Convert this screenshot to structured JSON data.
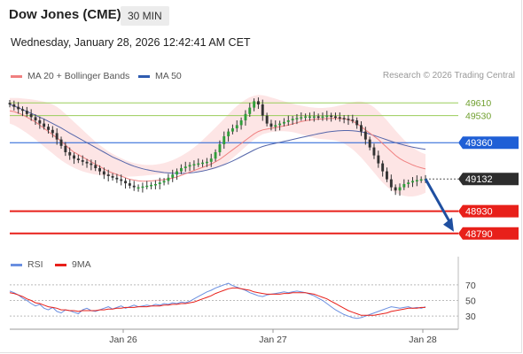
{
  "header": {
    "title": "Dow Jones (CME)",
    "interval": "30 MIN",
    "datetime": "Wednesday, January 28, 2026 12:42:41 AM CET",
    "credit": "Research © 2026 Trading Central"
  },
  "legend": {
    "ma20_label": "MA 20 + Bollinger Bands",
    "ma50_label": "MA 50",
    "rsi_label": "RSI",
    "ma9_label": "9MA"
  },
  "colors": {
    "ma20": "#f08080",
    "band_fill": "#fde2e2",
    "ma50": "#5566aa",
    "resistance": "#9acd5a",
    "pivot": "#1f5fd6",
    "support": "#e8201a",
    "last": "#333333",
    "rsi": "#6a8fe0",
    "rsi_ma": "#e8201a",
    "candle_up": "#2f9d3a",
    "candle_down": "#333333",
    "arrow": "#1f4fa0"
  },
  "chart_data": {
    "type": "candlestick",
    "ylim": [
      48700,
      49700
    ],
    "x_ticks": [
      "Jan 26",
      "Jan 27",
      "Jan 28"
    ],
    "levels": [
      {
        "value": 49610,
        "label": "49610",
        "kind": "resistance"
      },
      {
        "value": 49530,
        "label": "49530",
        "kind": "resistance"
      },
      {
        "value": 49360,
        "label": "49360",
        "kind": "pivot"
      },
      {
        "value": 49132,
        "label": "49132",
        "kind": "last"
      },
      {
        "value": 48930,
        "label": "48930",
        "kind": "support"
      },
      {
        "value": 48790,
        "label": "48790",
        "kind": "support"
      }
    ],
    "close": [
      49600,
      49585,
      49570,
      49560,
      49540,
      49520,
      49500,
      49480,
      49460,
      49440,
      49420,
      49380,
      49340,
      49300,
      49280,
      49260,
      49250,
      49240,
      49230,
      49220,
      49200,
      49180,
      49160,
      49150,
      49140,
      49130,
      49120,
      49105,
      49090,
      49080,
      49080,
      49085,
      49090,
      49095,
      49100,
      49110,
      49120,
      49140,
      49160,
      49180,
      49200,
      49210,
      49220,
      49225,
      49230,
      49235,
      49240,
      49260,
      49300,
      49350,
      49400,
      49430,
      49450,
      49470,
      49500,
      49540,
      49580,
      49620,
      49600,
      49530,
      49480,
      49460,
      49470,
      49480,
      49490,
      49500,
      49510,
      49515,
      49520,
      49525,
      49525,
      49525,
      49520,
      49525,
      49530,
      49525,
      49520,
      49515,
      49510,
      49505,
      49500,
      49470,
      49430,
      49380,
      49330,
      49280,
      49230,
      49180,
      49130,
      49080,
      49060,
      49080,
      49100,
      49110,
      49120,
      49125,
      49130,
      49132
    ],
    "ma20": [
      49560,
      49555,
      49545,
      49535,
      49520,
      49505,
      49490,
      49470,
      49450,
      49430,
      49410,
      49390,
      49370,
      49345,
      49320,
      49300,
      49285,
      49270,
      49255,
      49240,
      49225,
      49210,
      49195,
      49180,
      49170,
      49160,
      49150,
      49140,
      49130,
      49125,
      49120,
      49118,
      49118,
      49120,
      49122,
      49125,
      49128,
      49132,
      49137,
      49145,
      49155,
      49165,
      49175,
      49185,
      49195,
      49205,
      49215,
      49225,
      49240,
      49255,
      49275,
      49295,
      49315,
      49335,
      49355,
      49375,
      49395,
      49415,
      49430,
      49440,
      49445,
      49450,
      49455,
      49460,
      49465,
      49470,
      49478,
      49485,
      49492,
      49498,
      49502,
      49506,
      49508,
      49510,
      49511,
      49512,
      49512,
      49511,
      49510,
      49505,
      49495,
      49480,
      49460,
      49440,
      49420,
      49400,
      49380,
      49355,
      49330,
      49305,
      49280,
      49260,
      49245,
      49232,
      49220,
      49210,
      49202,
      49195
    ],
    "ma50": [
      49600,
      49590,
      49580,
      49568,
      49556,
      49544,
      49532,
      49520,
      49508,
      49494,
      49480,
      49466,
      49452,
      49436,
      49420,
      49405,
      49390,
      49375,
      49360,
      49345,
      49330,
      49315,
      49300,
      49285,
      49270,
      49258,
      49246,
      49234,
      49222,
      49212,
      49204,
      49196,
      49190,
      49185,
      49180,
      49176,
      49172,
      49170,
      49168,
      49167,
      49167,
      49168,
      49170,
      49173,
      49177,
      49182,
      49188,
      49195,
      49203,
      49212,
      49222,
      49233,
      49245,
      49258,
      49272,
      49286,
      49300,
      49314,
      49326,
      49336,
      49344,
      49350,
      49356,
      49362,
      49368,
      49374,
      49380,
      49386,
      49392,
      49398,
      49404,
      49410,
      49416,
      49421,
      49426,
      49430,
      49433,
      49435,
      49436,
      49436,
      49435,
      49432,
      49428,
      49422,
      49414,
      49405,
      49396,
      49387,
      49378,
      49369,
      49360,
      49352,
      49345,
      49338,
      49332,
      49327,
      49322,
      49318
    ],
    "band_upper": [
      49640,
      49640,
      49640,
      49638,
      49635,
      49632,
      49628,
      49623,
      49617,
      49610,
      49600,
      49585,
      49565,
      49540,
      49515,
      49490,
      49465,
      49440,
      49415,
      49390,
      49365,
      49345,
      49325,
      49305,
      49290,
      49275,
      49262,
      49250,
      49240,
      49232,
      49226,
      49222,
      49220,
      49220,
      49222,
      49226,
      49232,
      49240,
      49250,
      49262,
      49276,
      49292,
      49310,
      49330,
      49352,
      49376,
      49402,
      49428,
      49455,
      49482,
      49510,
      49538,
      49565,
      49590,
      49612,
      49630,
      49645,
      49655,
      49660,
      49658,
      49652,
      49644,
      49636,
      49628,
      49620,
      49612,
      49604,
      49598,
      49592,
      49587,
      49583,
      49580,
      49578,
      49578,
      49580,
      49583,
      49588,
      49594,
      49600,
      49608,
      49614,
      49618,
      49618,
      49612,
      49600,
      49582,
      49558,
      49530,
      49500,
      49468,
      49436,
      49406,
      49378,
      49352,
      49330,
      49312,
      49298,
      49288
    ],
    "band_lower": [
      49480,
      49470,
      49455,
      49438,
      49420,
      49400,
      49380,
      49358,
      49336,
      49314,
      49292,
      49270,
      49250,
      49232,
      49216,
      49202,
      49190,
      49180,
      49172,
      49165,
      49160,
      49156,
      49153,
      49150,
      49148,
      49147,
      49146,
      49146,
      49147,
      49148,
      49150,
      49152,
      49155,
      49158,
      49160,
      49162,
      49164,
      49166,
      49168,
      49170,
      49172,
      49174,
      49176,
      49178,
      49180,
      49182,
      49185,
      49190,
      49198,
      49208,
      49222,
      49240,
      49262,
      49286,
      49310,
      49334,
      49358,
      49380,
      49398,
      49412,
      49420,
      49426,
      49430,
      49432,
      49432,
      49430,
      49426,
      49420,
      49413,
      49405,
      49397,
      49390,
      49385,
      49382,
      49380,
      49378,
      49374,
      49366,
      49354,
      49338,
      49318,
      49294,
      49266,
      49236,
      49204,
      49172,
      49140,
      49110,
      49084,
      49062,
      49046,
      49034,
      49026,
      49022,
      49022,
      49026,
      49034,
      49046
    ],
    "projection_target": 48790,
    "rsi": {
      "ylim": [
        20,
        80
      ],
      "ticks": [
        70,
        50,
        30
      ],
      "rsi": [
        62,
        60,
        57,
        53,
        50,
        46,
        43,
        45,
        40,
        38,
        41,
        36,
        34,
        38,
        37,
        35,
        33,
        38,
        40,
        37,
        36,
        38,
        40,
        42,
        39,
        41,
        43,
        40,
        42,
        44,
        42,
        43,
        44,
        43,
        45,
        44,
        46,
        45,
        47,
        46,
        48,
        47,
        49,
        52,
        55,
        58,
        61,
        63,
        66,
        68,
        70,
        72,
        69,
        67,
        65,
        63,
        60,
        58,
        56,
        55,
        57,
        58,
        59,
        60,
        61,
        60,
        61,
        62,
        61,
        60,
        58,
        56,
        53,
        50,
        46,
        42,
        38,
        35,
        32,
        30,
        28,
        27,
        28,
        30,
        32,
        34,
        36,
        38,
        40,
        42,
        41,
        40,
        41,
        42,
        40,
        41,
        40,
        42
      ],
      "ma9": [
        60,
        59,
        57,
        55,
        52,
        50,
        47,
        46,
        44,
        42,
        41,
        40,
        38,
        38,
        37,
        37,
        36,
        37,
        37,
        37,
        37,
        38,
        38,
        39,
        39,
        40,
        40,
        41,
        41,
        41,
        42,
        42,
        42,
        43,
        43,
        43,
        44,
        44,
        45,
        45,
        46,
        46,
        47,
        48,
        50,
        52,
        54,
        56,
        59,
        61,
        63,
        65,
        66,
        66,
        65,
        64,
        63,
        61,
        60,
        59,
        58,
        58,
        58,
        58,
        59,
        59,
        60,
        60,
        60,
        60,
        59,
        58,
        56,
        54,
        52,
        49,
        46,
        43,
        40,
        37,
        35,
        33,
        31,
        31,
        31,
        31,
        32,
        33,
        34,
        36,
        37,
        38,
        39,
        40,
        40,
        40,
        41,
        41
      ]
    }
  }
}
